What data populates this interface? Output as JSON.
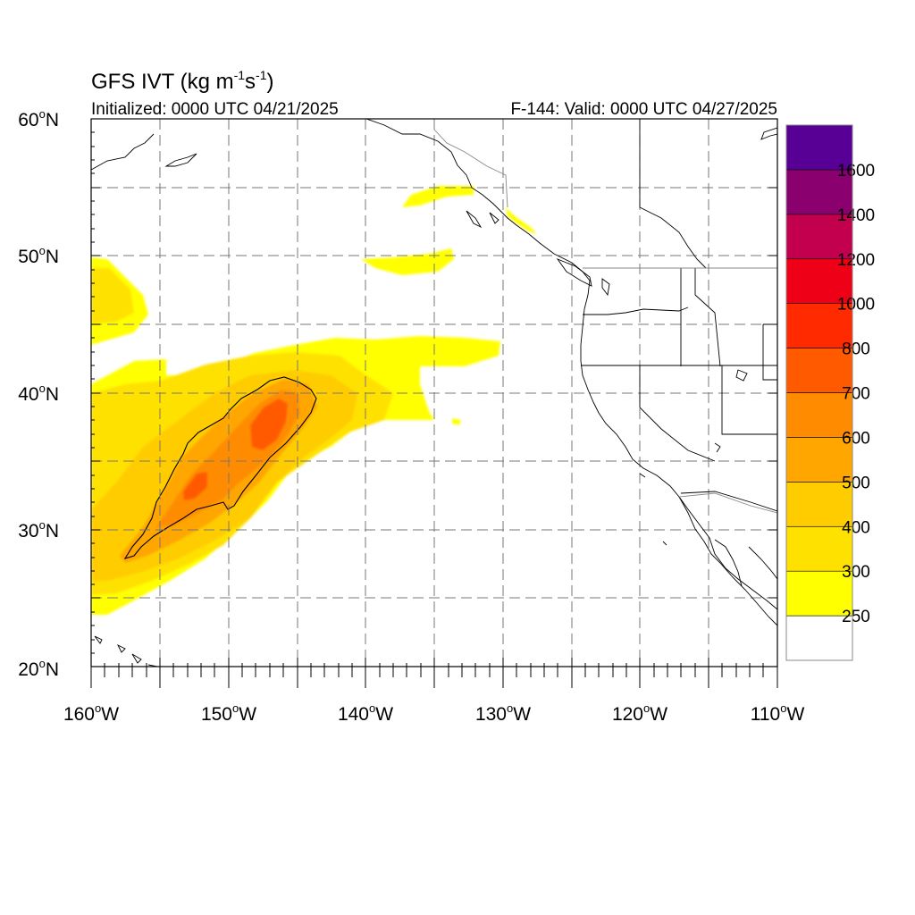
{
  "title": {
    "main": "GFS IVT (kg m",
    "exp1": "-1",
    "mid": "s",
    "exp2": "-1",
    "close": ")"
  },
  "subtitle_left": "Initialized: 0000 UTC 04/21/2025",
  "subtitle_right": "F-144: Valid: 0000 UTC 04/27/2025",
  "lat_labels": [
    {
      "deg": "60",
      "unit": "N"
    },
    {
      "deg": "50",
      "unit": "N"
    },
    {
      "deg": "40",
      "unit": "N"
    },
    {
      "deg": "30",
      "unit": "N"
    },
    {
      "deg": "20",
      "unit": "N"
    }
  ],
  "lon_labels": [
    {
      "deg": "160",
      "unit": "W"
    },
    {
      "deg": "150",
      "unit": "W"
    },
    {
      "deg": "140",
      "unit": "W"
    },
    {
      "deg": "130",
      "unit": "W"
    },
    {
      "deg": "120",
      "unit": "W"
    },
    {
      "deg": "110",
      "unit": "W"
    }
  ],
  "map_extent": {
    "lon_min": -160,
    "lon_max": -110,
    "lat_min": 20,
    "lat_max": 60
  },
  "colorbar": {
    "levels": [
      "250",
      "300",
      "400",
      "500",
      "600",
      "700",
      "800",
      "1000",
      "1200",
      "1400",
      "1600"
    ],
    "colors": [
      "#ffffff",
      "#ffff00",
      "#ffe100",
      "#ffcc00",
      "#ffa600",
      "#ff8c00",
      "#ff5a00",
      "#ff2a00",
      "#ee0016",
      "#c2004e",
      "#8a006e",
      "#580096"
    ]
  }
}
